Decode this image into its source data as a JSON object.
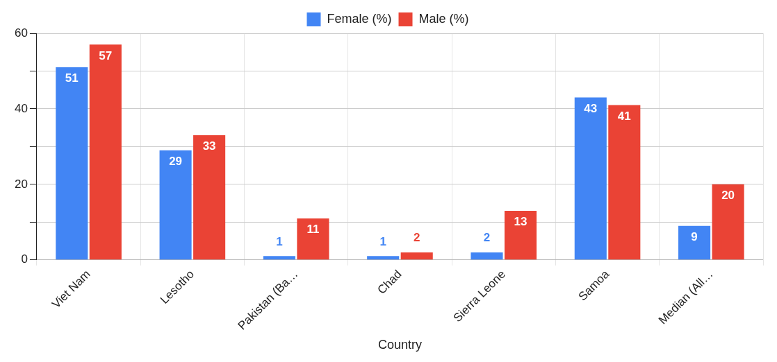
{
  "chart_data": {
    "type": "bar",
    "xlabel": "Country",
    "categories": [
      "Viet Nam",
      "Lesotho",
      "Pakistan (Ba…",
      "Chad",
      "Sierra Leone",
      "Samoa",
      "Median (All…"
    ],
    "series": [
      {
        "name": "Female (%)",
        "color": "#4285f4",
        "values": [
          51,
          29,
          1,
          1,
          2,
          43,
          9
        ]
      },
      {
        "name": "Male (%)",
        "color": "#ea4335",
        "values": [
          57,
          33,
          11,
          2,
          13,
          41,
          20
        ]
      }
    ],
    "ylim": [
      0,
      60
    ],
    "yticks": [
      0,
      {
        "value": 10,
        "label": null
      },
      20,
      {
        "value": 30,
        "label": null
      },
      40,
      {
        "value": 50,
        "label": null
      },
      60
    ],
    "grid": true,
    "legend": "top",
    "data_labels": true
  }
}
